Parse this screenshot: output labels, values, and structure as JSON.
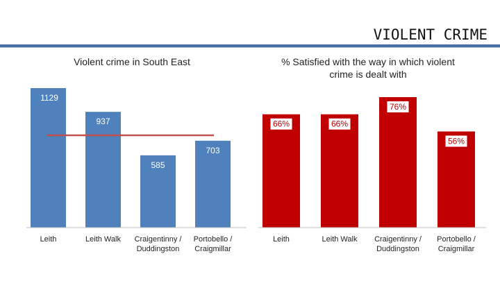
{
  "slide": {
    "title": "VIOLENT CRIME"
  },
  "chart_data": [
    {
      "type": "bar",
      "title": "Violent crime in South East",
      "categories": [
        "Leith",
        "Leith Walk",
        "Craigentinny / Duddingston",
        "Portobello / Craigmillar"
      ],
      "values": [
        1129,
        937,
        585,
        703
      ],
      "data_labels": [
        "1129",
        "937",
        "585",
        "703"
      ],
      "reference_line": 937,
      "ylim": [
        0,
        1129
      ],
      "grid": false,
      "colors": {
        "bar": "#4f81bd",
        "label_bg": "#4f81bd",
        "label_text": "#ffffff",
        "reference_line": "#c0504d"
      }
    },
    {
      "type": "bar",
      "title": "% Satisfied with the way in which violent crime is dealt with",
      "categories": [
        "Leith",
        "Leith Walk",
        "Craigentinny / Duddingston",
        "Portobello / Craigmillar"
      ],
      "values": [
        66,
        66,
        76,
        56
      ],
      "data_labels": [
        "66%",
        "66%",
        "76%",
        "56%"
      ],
      "ylim": [
        0,
        76
      ],
      "grid": false,
      "colors": {
        "bar": "#c00000",
        "label_bg": "#ffffff",
        "label_text": "#c00000"
      }
    }
  ]
}
